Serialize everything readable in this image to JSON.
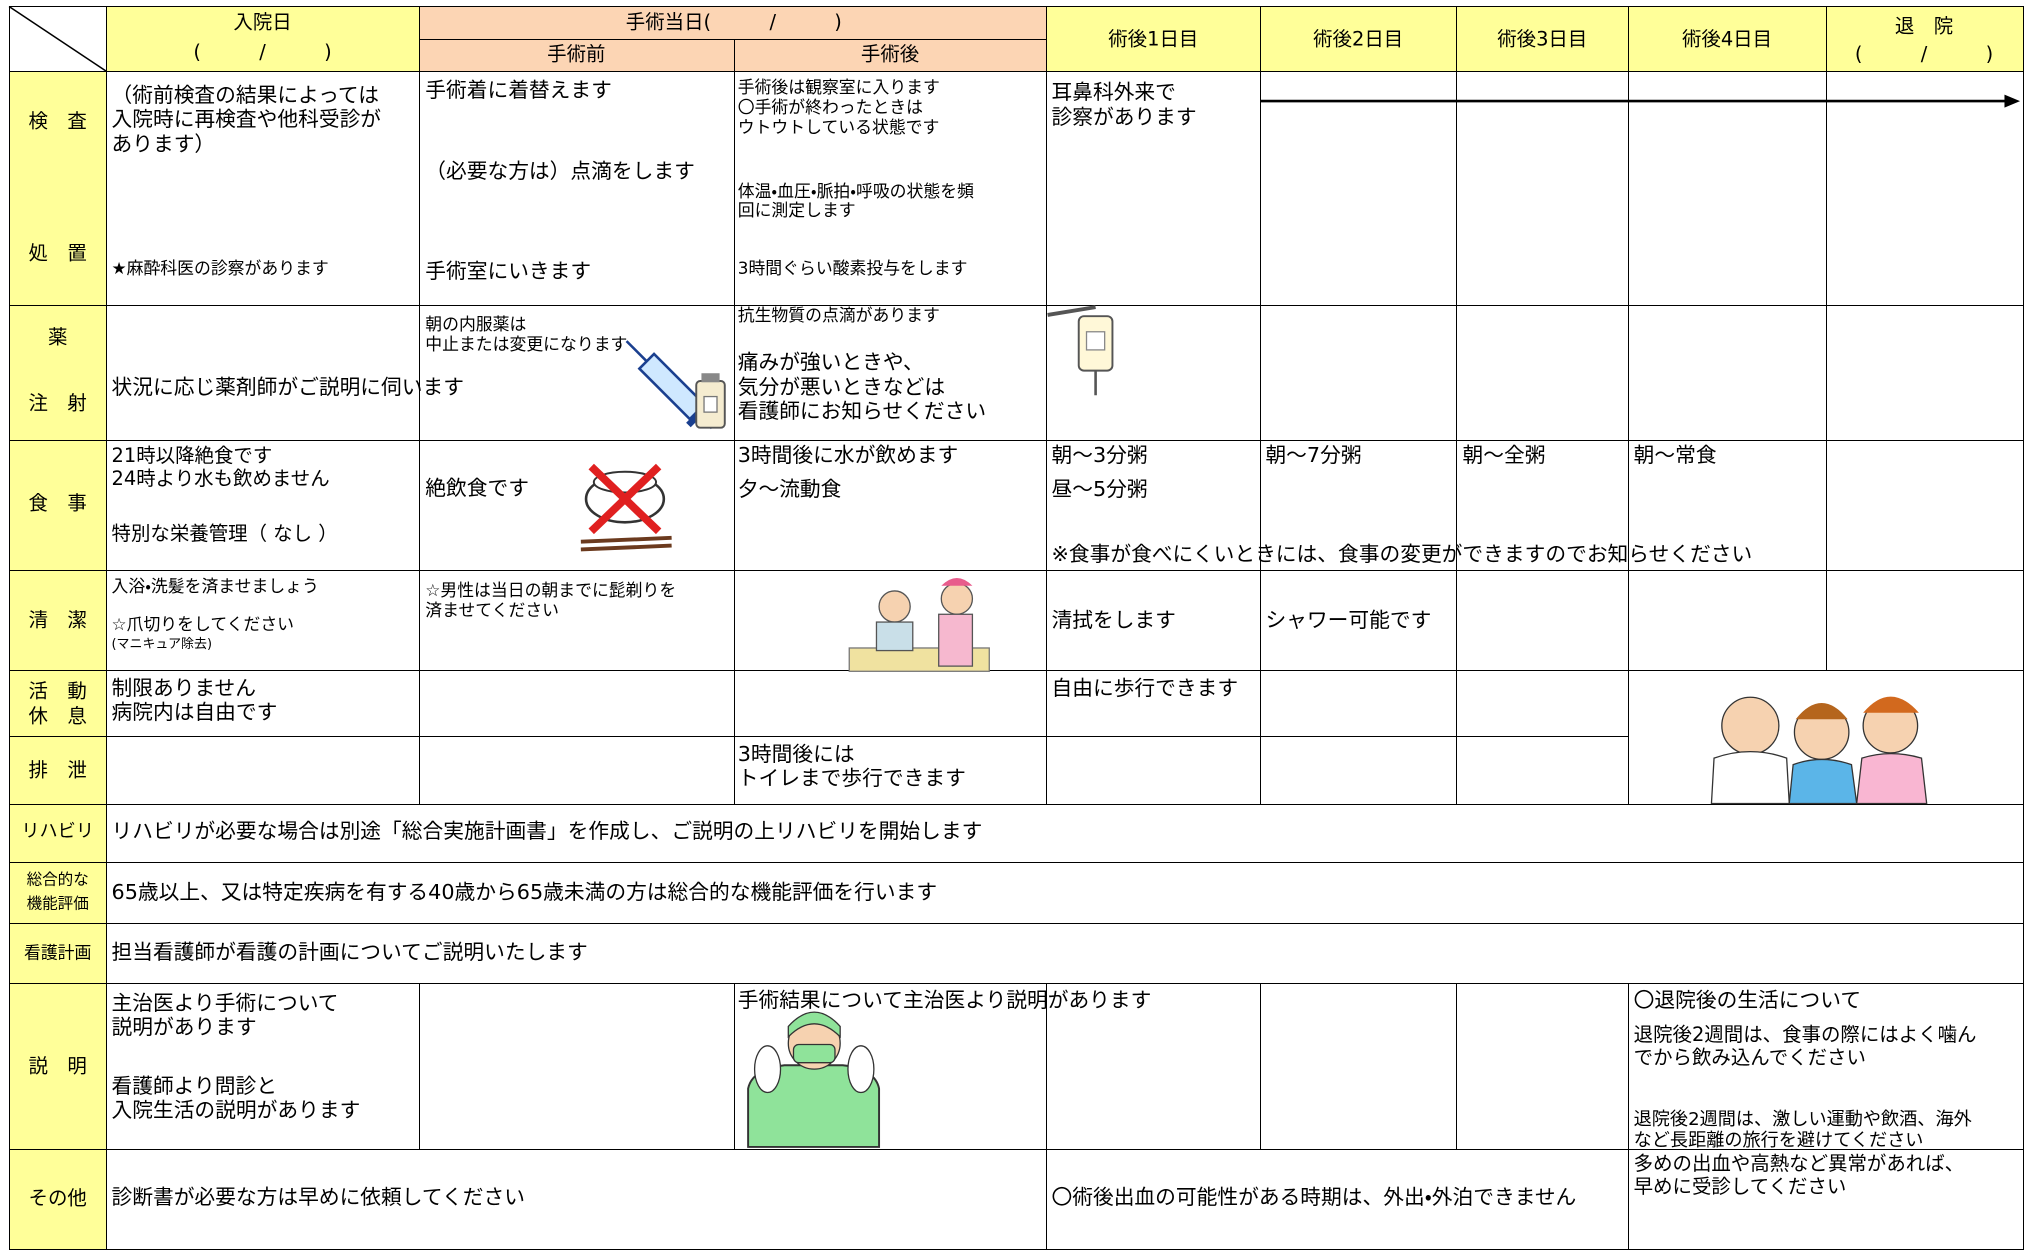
{
  "header": {
    "admission": "入院日",
    "admission_date": "(　　　/　　　)",
    "surgery_day": "手術当日(　　　/　　　)",
    "pre_op": "手術前",
    "post_op": "手術後",
    "day1": "術後1日目",
    "day2": "術後2日目",
    "day3": "術後3日目",
    "day4": "術後4日目",
    "discharge": "退　院",
    "discharge_date": "(　　　/　　　)"
  },
  "rows": [
    {
      "label": [
        "検　査",
        "処　置"
      ],
      "texts": [
        "（術前検査の結果によっては\n入院時に再検査や他科受診が\nあります）",
        "★麻酔科医の診察があります",
        "手術着に着替えます",
        "（必要な方は）点滴をします",
        "手術室にいきます",
        "手術後は観察室に入ります\n〇手術が終わったときは\nウトウトしている状態です",
        "体温・血圧・脈拍・呼吸の状態を頻\n回に測定します",
        "3時間ぐらい酸素投与をします",
        "耳鼻科外来で\n診察があります"
      ]
    },
    {
      "label": [
        "薬",
        "注　射"
      ],
      "texts": [
        "状況に応じ薬剤師がご説明に伺います",
        "朝の内服薬は\n中止または変更になります",
        "抗生物質の点滴があります",
        "痛みが強いときや、\n気分が悪いときなどは\n看護師にお知らせください"
      ]
    },
    {
      "label": [
        "食　事"
      ],
      "texts": [
        "21時以降絶食です\n24時より水も飲めません",
        "特別な栄養管理（ なし ）",
        "絶飲食です",
        "3時間後に水が飲めます",
        "夕～流動食",
        "朝～3分粥",
        "昼～5分粥",
        "朝～7分粥",
        "朝～全粥",
        "朝～常食",
        "※食事が食べにくいときには、食事の変更ができますのでお知らせください"
      ]
    },
    {
      "label": [
        "清　潔"
      ],
      "texts": [
        "入浴・洗髪を済ませましょう",
        "☆爪切りをしてください",
        "(マニキュア除去)",
        "☆男性は当日の朝までに髭剃りを\n済ませてください",
        "清拭をします",
        "シャワー可能です"
      ]
    },
    {
      "label": [
        "活　動",
        "休　息"
      ],
      "texts": [
        "制限ありません\n病院内は自由です",
        "自由に歩行できます"
      ]
    },
    {
      "label": [
        "排　泄"
      ],
      "texts": [
        "3時間後には\nトイレまで歩行できます"
      ]
    },
    {
      "label": [
        "リハビリ"
      ],
      "texts": [
        "リハビリが必要な場合は別途「総合実施計画書」を作成し、ご説明の上リハビリを開始します"
      ]
    },
    {
      "label": [
        "総合的な",
        "機能評価"
      ],
      "texts": [
        "65歳以上、又は特定疾病を有する40歳から65歳未満の方は総合的な機能評価を行います"
      ]
    },
    {
      "label": [
        "看護計画"
      ],
      "texts": [
        "担当看護師が看護の計画についてご説明いたします"
      ]
    },
    {
      "label": [
        "説　明"
      ],
      "texts": [
        "主治医より手術について\n説明があります",
        "看護師より問診と\n入院生活の説明があります",
        "手術結果について主治医より説明があります",
        "〇退院後の生活について",
        "退院後2週間は、食事の際にはよく噛ん\nでから飲み込んでください",
        "退院後2週間は、激しい運動や飲酒、海外\nなど長距離の旅行を避けてください"
      ]
    },
    {
      "label": [
        "その他"
      ],
      "texts": [
        "診断書が必要な方は早めに依頼してください",
        "〇術後出血の可能性がある時期は、外出・外泊できません",
        "多めの出血や高熱など異常があれば、\n早めに受診してください"
      ]
    }
  ]
}
